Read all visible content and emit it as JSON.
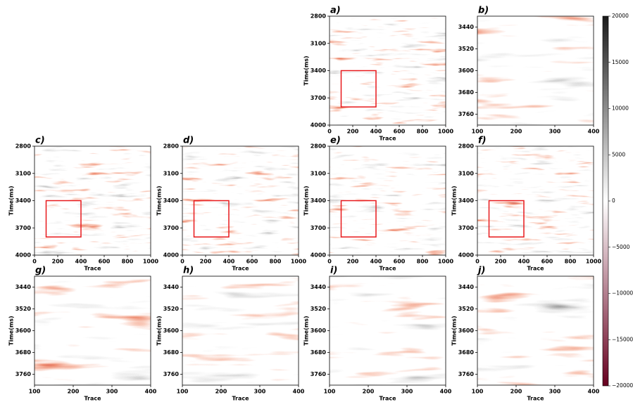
{
  "chart_data": [
    {
      "type": "seismic",
      "title": "a)",
      "xlabel": "Trace",
      "ylabel": "Time(ms)",
      "xlim": [
        0,
        1000
      ],
      "xticks": [
        0,
        200,
        400,
        600,
        800,
        1000
      ],
      "ylim": [
        2800,
        4000
      ],
      "yticks": [
        2800,
        3100,
        3400,
        3700,
        4000
      ],
      "y_inverted": true,
      "highlight": {
        "x": [
          100,
          400
        ],
        "y": [
          3400,
          3800
        ],
        "color": "#e8191c"
      }
    },
    {
      "type": "seismic",
      "title": "b)",
      "xlim": [
        100,
        400
      ],
      "xticks": [
        100,
        200,
        300,
        400
      ],
      "ylim": [
        3400,
        3800
      ],
      "yticks": [
        3440,
        3520,
        3600,
        3680,
        3760
      ],
      "y_inverted": true
    },
    {
      "type": "seismic",
      "title": "c)",
      "xlabel": "Trace",
      "ylabel": "Time(ms)",
      "xlim": [
        0,
        1000
      ],
      "xticks": [
        0,
        200,
        400,
        600,
        800,
        1000
      ],
      "ylim": [
        2800,
        4000
      ],
      "yticks": [
        2800,
        3100,
        3400,
        3700,
        4000
      ],
      "y_inverted": true,
      "highlight": {
        "x": [
          100,
          400
        ],
        "y": [
          3400,
          3800
        ],
        "color": "#e8191c"
      }
    },
    {
      "type": "seismic",
      "title": "d)",
      "xlabel": "Trace",
      "ylabel": "Time(ms)",
      "xlim": [
        0,
        1000
      ],
      "xticks": [
        0,
        200,
        400,
        600,
        800,
        1000
      ],
      "ylim": [
        2800,
        4000
      ],
      "yticks": [
        2800,
        3100,
        3400,
        3700,
        4000
      ],
      "y_inverted": true,
      "highlight": {
        "x": [
          100,
          400
        ],
        "y": [
          3400,
          3800
        ],
        "color": "#e8191c"
      }
    },
    {
      "type": "seismic",
      "title": "e)",
      "xlabel": "Trace",
      "ylabel": "Time(ms)",
      "xlim": [
        0,
        1000
      ],
      "xticks": [
        0,
        200,
        400,
        600,
        800,
        1000
      ],
      "ylim": [
        2800,
        4000
      ],
      "yticks": [
        2800,
        3100,
        3400,
        3700,
        4000
      ],
      "y_inverted": true,
      "highlight": {
        "x": [
          100,
          400
        ],
        "y": [
          3400,
          3800
        ],
        "color": "#e8191c"
      }
    },
    {
      "type": "seismic",
      "title": "f)",
      "xlabel": "Trace",
      "ylabel": "Time(ms)",
      "xlim": [
        0,
        1000
      ],
      "xticks": [
        0,
        200,
        400,
        600,
        800,
        1000
      ],
      "ylim": [
        2800,
        4000
      ],
      "yticks": [
        2800,
        3100,
        3400,
        3700,
        4000
      ],
      "y_inverted": true,
      "highlight": {
        "x": [
          100,
          400
        ],
        "y": [
          3400,
          3800
        ],
        "color": "#e8191c"
      }
    },
    {
      "type": "seismic",
      "title": "g)",
      "xlabel": "Trace",
      "ylabel": "Time(ms)",
      "xlim": [
        100,
        400
      ],
      "xticks": [
        100,
        200,
        300,
        400
      ],
      "ylim": [
        3400,
        3800
      ],
      "yticks": [
        3440,
        3520,
        3600,
        3680,
        3760
      ],
      "y_inverted": true
    },
    {
      "type": "seismic",
      "title": "h)",
      "xlabel": "Trace",
      "ylabel": "Time(ms)",
      "xlim": [
        100,
        400
      ],
      "xticks": [
        100,
        200,
        300,
        400
      ],
      "ylim": [
        3400,
        3800
      ],
      "yticks": [
        3440,
        3520,
        3600,
        3680,
        3760
      ],
      "y_inverted": true
    },
    {
      "type": "seismic",
      "title": "i)",
      "xlabel": "Trace",
      "ylabel": "Time(ms)",
      "xlim": [
        100,
        400
      ],
      "xticks": [
        100,
        200,
        300,
        400
      ],
      "ylim": [
        3400,
        3800
      ],
      "yticks": [
        3440,
        3520,
        3600,
        3680,
        3760
      ],
      "y_inverted": true
    },
    {
      "type": "seismic",
      "title": "j)",
      "xlabel": "Trace",
      "ylabel": "Time(ms)",
      "xlim": [
        100,
        400
      ],
      "xticks": [
        100,
        200,
        300,
        400
      ],
      "ylim": [
        3400,
        3800
      ],
      "yticks": [
        3440,
        3520,
        3600,
        3680,
        3760
      ],
      "y_inverted": true
    },
    {
      "type": "colorbar",
      "colors": [
        "#67001f",
        "#ffffff",
        "#1a1a1a"
      ],
      "ylim": [
        -20000,
        20000
      ],
      "yticks": [
        {
          "value": -20000,
          "label": "−20000"
        },
        {
          "value": -15000,
          "label": "−15000"
        },
        {
          "value": -10000,
          "label": "−10000"
        },
        {
          "value": -5000,
          "label": "−5000"
        },
        0,
        5000,
        10000,
        15000,
        20000
      ]
    }
  ]
}
